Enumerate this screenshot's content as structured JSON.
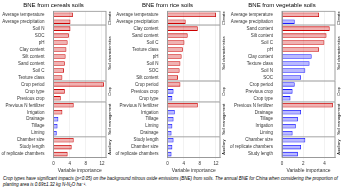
{
  "caption": "Crop types have significant impacts (p<0.05) on the background nitrous oxide emissions (BNE) from soils. The annual BNE for China when considering the proportion of planting area is 0.69±1.32 kg N-N₂O ha⁻¹.",
  "chart_data": [
    {
      "type": "bar",
      "orientation": "horizontal",
      "title": "BNE from cereals soils",
      "xlabel": "Variable importance",
      "xlim": [
        0,
        13
      ],
      "xticks": [
        0,
        4,
        8,
        12
      ],
      "grid": true,
      "groups": [
        {
          "name": "Climate",
          "categories": [
            "Average temperature",
            "Average precipitation"
          ],
          "values": [
            4.8,
            4.2
          ],
          "colors": [
            "#cc0000",
            "#cc0000"
          ]
        },
        {
          "name": "Soil characteristics",
          "categories": [
            "Soil N",
            "SOC",
            "pH",
            "Clay content",
            "Silt content",
            "Sand content",
            "Soil C",
            "Texture class"
          ],
          "values": [
            4.2,
            3.8,
            3.5,
            3.2,
            3.0,
            2.8,
            2.6,
            2.2
          ],
          "colors": [
            "#cc0000",
            "#cc0000",
            "#cc0000",
            "#cc0000",
            "#cc0000",
            "#cc0000",
            "#cc0000",
            "#cc0000"
          ]
        },
        {
          "name": "Crop",
          "categories": [
            "Crop period",
            "Crop type",
            "Previous crop"
          ],
          "values": [
            12.5,
            2.8,
            1.8
          ],
          "colors": [
            "#cc0000",
            "#cc0000",
            "#cc0000"
          ]
        },
        {
          "name": "Soil management",
          "categories": [
            "Previous N fertilizer",
            "Irrigation",
            "Drainage",
            "Tillage",
            "Liming"
          ],
          "values": [
            5.0,
            2.2,
            1.2,
            1.0,
            0.8
          ],
          "colors": [
            "#cc0000",
            "#cc0000",
            "#1a1aff",
            "#1a1aff",
            "#1a1aff"
          ]
        },
        {
          "name": "Auxiliary",
          "categories": [
            "Chamber size",
            "Study length",
            "Nr of replicate chambers"
          ],
          "values": [
            5.0,
            4.5,
            3.5
          ],
          "colors": [
            "#cc0000",
            "#cc0000",
            "#cc0000"
          ]
        }
      ]
    },
    {
      "type": "bar",
      "orientation": "horizontal",
      "title": "BNE from rice soils",
      "xlabel": "Variable importance",
      "xlim": [
        0,
        13
      ],
      "xticks": [
        0,
        4,
        8,
        12
      ],
      "grid": true,
      "groups": [
        {
          "name": "Climate",
          "categories": [
            "Average temperature",
            "Average precipitation"
          ],
          "values": [
            12.0,
            4.5
          ],
          "colors": [
            "#cc0000",
            "#cc0000"
          ]
        },
        {
          "name": "Soil characteristics",
          "categories": [
            "Clay content",
            "Sand content",
            "Soil C",
            "Texture class",
            "pH",
            "Soil N",
            "SOC",
            "Silt content"
          ],
          "values": [
            7.5,
            5.0,
            4.2,
            3.8,
            3.5,
            3.2,
            3.0,
            2.6
          ],
          "colors": [
            "#cc0000",
            "#cc0000",
            "#cc0000",
            "#cc0000",
            "#cc0000",
            "#cc0000",
            "#cc0000",
            "#cc0000"
          ]
        },
        {
          "name": "Crop",
          "categories": [
            "Crop period",
            "Previous crop",
            "Crop type"
          ],
          "values": [
            3.2,
            1.5,
            1.2
          ],
          "colors": [
            "#cc0000",
            "#1a1aff",
            "#1a1aff"
          ]
        },
        {
          "name": "Soil management",
          "categories": [
            "Previous N fertilizer",
            "Irrigation",
            "Tillage",
            "Liming",
            "Drainage"
          ],
          "values": [
            7.5,
            1.8,
            1.5,
            1.2,
            1.0
          ],
          "colors": [
            "#cc0000",
            "#1a1aff",
            "#1a1aff",
            "#1a1aff",
            "#1a1aff"
          ]
        },
        {
          "name": "Auxiliary",
          "categories": [
            "Study length",
            "Chamber size",
            "Nr of replicate chambers"
          ],
          "values": [
            1.5,
            1.2,
            1.0
          ],
          "colors": [
            "#1a1aff",
            "#1a1aff",
            "#1a1aff"
          ]
        }
      ]
    },
    {
      "type": "bar",
      "orientation": "horizontal",
      "title": "BNE from vegetable soils",
      "xlabel": "Variable importance",
      "xlim": [
        0,
        5
      ],
      "xticks": [
        0,
        2,
        4
      ],
      "grid": true,
      "groups": [
        {
          "name": "Climate",
          "categories": [
            "Average temperature",
            "Average precipitation"
          ],
          "values": [
            3.5,
            1.2
          ],
          "colors": [
            "#cc0000",
            "#1a1aff"
          ]
        },
        {
          "name": "Soil characteristics",
          "categories": [
            "Sand content",
            "Silt content",
            "Soil C",
            "pH",
            "Clay content",
            "Texture class",
            "Soil N",
            "SOC"
          ],
          "values": [
            4.5,
            4.2,
            4.0,
            3.5,
            2.8,
            2.6,
            2.2,
            1.8
          ],
          "colors": [
            "#cc0000",
            "#cc0000",
            "#cc0000",
            "#cc0000",
            "#1a1aff",
            "#1a1aff",
            "#1a1aff",
            "#1a1aff"
          ]
        },
        {
          "name": "Crop",
          "categories": [
            "Crop period",
            "Previous crop",
            "Crop type"
          ],
          "values": [
            1.2,
            1.0,
            0.8
          ],
          "colors": [
            "#1a1aff",
            "#1a1aff",
            "#1a1aff"
          ]
        },
        {
          "name": "Soil management",
          "categories": [
            "Previous N fertilizer",
            "Drainage",
            "Tillage",
            "Irrigation",
            "Liming"
          ],
          "values": [
            4.8,
            1.8,
            1.5,
            1.3,
            1.0
          ],
          "colors": [
            "#cc0000",
            "#1a1aff",
            "#1a1aff",
            "#1a1aff",
            "#1a1aff"
          ]
        },
        {
          "name": "Auxiliary",
          "categories": [
            "Chamber size",
            "Nr of replicate chambers",
            "Study length"
          ],
          "values": [
            2.2,
            1.8,
            1.5
          ],
          "colors": [
            "#1a1aff",
            "#1a1aff",
            "#1a1aff"
          ]
        }
      ]
    }
  ]
}
